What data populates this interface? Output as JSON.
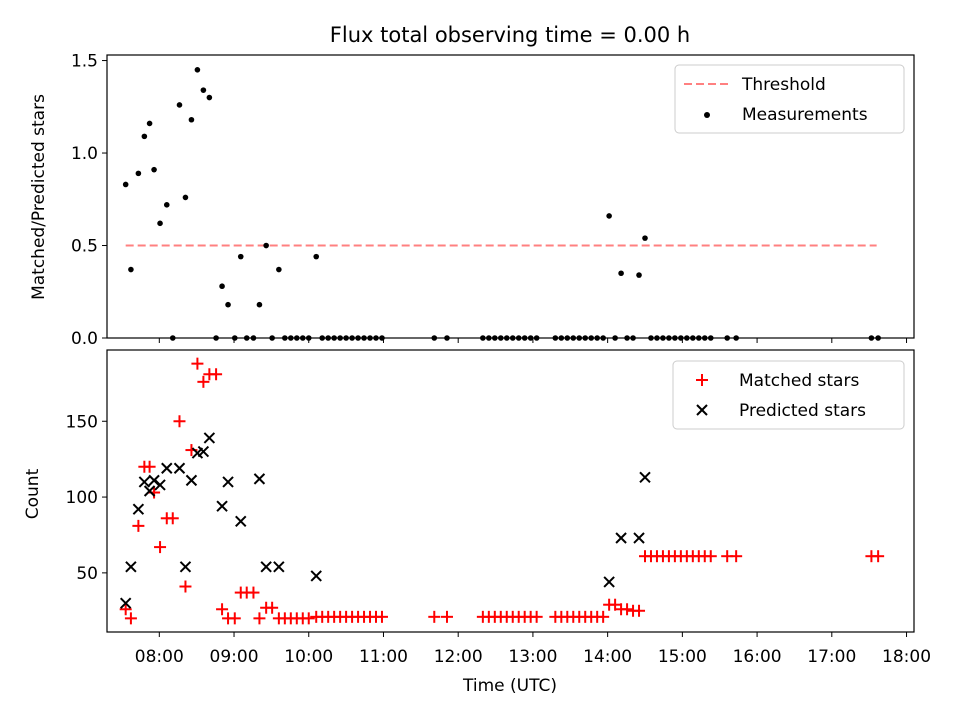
{
  "chart_data": [
    {
      "type": "scatter",
      "title": "Flux total observing time = 0.00 h",
      "xlabel": "",
      "ylabel": "Matched/Predicted stars",
      "xlim": [
        7.3,
        18.1
      ],
      "ylim": [
        0,
        1.53
      ],
      "yticks": [
        0.0,
        0.5,
        1.0,
        1.5
      ],
      "ytick_labels": [
        "0.0",
        "0.5",
        "1.0",
        "1.5"
      ],
      "legend_position": "top-right",
      "threshold": {
        "name": "Threshold",
        "value": 0.5,
        "x_start": 7.55,
        "x_end": 17.6,
        "color": "#ff8080"
      },
      "series": [
        {
          "name": "Measurements",
          "color": "#000000",
          "marker": "dot",
          "points": [
            [
              7.55,
              0.83
            ],
            [
              7.62,
              0.37
            ],
            [
              7.72,
              0.89
            ],
            [
              7.8,
              1.09
            ],
            [
              7.87,
              1.16
            ],
            [
              7.93,
              0.91
            ],
            [
              8.01,
              0.62
            ],
            [
              8.1,
              0.72
            ],
            [
              8.18,
              0.0
            ],
            [
              8.27,
              1.26
            ],
            [
              8.35,
              0.76
            ],
            [
              8.43,
              1.18
            ],
            [
              8.51,
              1.45
            ],
            [
              8.59,
              1.34
            ],
            [
              8.67,
              1.3
            ],
            [
              8.76,
              0.0
            ],
            [
              8.84,
              0.28
            ],
            [
              8.92,
              0.18
            ],
            [
              9.01,
              0.0
            ],
            [
              9.09,
              0.44
            ],
            [
              9.17,
              0.0
            ],
            [
              9.26,
              0.0
            ],
            [
              9.34,
              0.18
            ],
            [
              9.43,
              0.5
            ],
            [
              9.51,
              0.0
            ],
            [
              9.6,
              0.37
            ],
            [
              9.68,
              0.0
            ],
            [
              9.76,
              0.0
            ],
            [
              9.84,
              0.0
            ],
            [
              9.92,
              0.0
            ],
            [
              10.0,
              0.0
            ],
            [
              10.1,
              0.44
            ],
            [
              10.18,
              0.0
            ],
            [
              10.26,
              0.0
            ],
            [
              10.34,
              0.0
            ],
            [
              10.42,
              0.0
            ],
            [
              10.5,
              0.0
            ],
            [
              10.58,
              0.0
            ],
            [
              10.66,
              0.0
            ],
            [
              10.74,
              0.0
            ],
            [
              10.82,
              0.0
            ],
            [
              10.9,
              0.0
            ],
            [
              10.98,
              0.0
            ],
            [
              11.68,
              0.0
            ],
            [
              11.85,
              0.0
            ],
            [
              12.33,
              0.0
            ],
            [
              12.41,
              0.0
            ],
            [
              12.49,
              0.0
            ],
            [
              12.57,
              0.0
            ],
            [
              12.65,
              0.0
            ],
            [
              12.73,
              0.0
            ],
            [
              12.81,
              0.0
            ],
            [
              12.89,
              0.0
            ],
            [
              12.97,
              0.0
            ],
            [
              13.05,
              0.0
            ],
            [
              13.3,
              0.0
            ],
            [
              13.38,
              0.0
            ],
            [
              13.46,
              0.0
            ],
            [
              13.54,
              0.0
            ],
            [
              13.62,
              0.0
            ],
            [
              13.7,
              0.0
            ],
            [
              13.78,
              0.0
            ],
            [
              13.86,
              0.0
            ],
            [
              13.94,
              0.0
            ],
            [
              14.02,
              0.66
            ],
            [
              14.1,
              0.0
            ],
            [
              14.18,
              0.35
            ],
            [
              14.26,
              0.0
            ],
            [
              14.34,
              0.0
            ],
            [
              14.42,
              0.34
            ],
            [
              14.5,
              0.54
            ],
            [
              14.58,
              0.0
            ],
            [
              14.66,
              0.0
            ],
            [
              14.74,
              0.0
            ],
            [
              14.82,
              0.0
            ],
            [
              14.9,
              0.0
            ],
            [
              14.98,
              0.0
            ],
            [
              15.06,
              0.0
            ],
            [
              15.14,
              0.0
            ],
            [
              15.22,
              0.0
            ],
            [
              15.3,
              0.0
            ],
            [
              15.38,
              0.0
            ],
            [
              15.6,
              0.0
            ],
            [
              15.72,
              0.0
            ],
            [
              17.53,
              0.0
            ],
            [
              17.62,
              0.0
            ]
          ]
        }
      ]
    },
    {
      "type": "scatter",
      "title": "",
      "xlabel": "Time (UTC)",
      "ylabel": "Count",
      "xlim": [
        7.3,
        18.1
      ],
      "ylim": [
        11,
        197
      ],
      "xticks": [
        8,
        9,
        10,
        11,
        12,
        13,
        14,
        15,
        16,
        17,
        18
      ],
      "xtick_labels": [
        "08:00",
        "09:00",
        "10:00",
        "11:00",
        "12:00",
        "13:00",
        "14:00",
        "15:00",
        "16:00",
        "17:00",
        "18:00"
      ],
      "yticks": [
        50,
        100,
        150
      ],
      "ytick_labels": [
        "50",
        "100",
        "150"
      ],
      "legend_position": "top-right",
      "series": [
        {
          "name": "Matched stars",
          "color": "#ff0000",
          "marker": "plus",
          "points": [
            [
              7.55,
              26
            ],
            [
              7.62,
              20
            ],
            [
              7.72,
              81
            ],
            [
              7.8,
              120
            ],
            [
              7.87,
              120
            ],
            [
              7.93,
              103
            ],
            [
              8.01,
              67
            ],
            [
              8.1,
              86
            ],
            [
              8.18,
              86
            ],
            [
              8.27,
              150
            ],
            [
              8.35,
              41
            ],
            [
              8.43,
              131
            ],
            [
              8.51,
              188
            ],
            [
              8.59,
              176
            ],
            [
              8.67,
              181
            ],
            [
              8.76,
              181
            ],
            [
              8.84,
              26
            ],
            [
              8.92,
              20
            ],
            [
              9.01,
              20
            ],
            [
              9.09,
              37
            ],
            [
              9.17,
              37
            ],
            [
              9.26,
              37
            ],
            [
              9.34,
              20
            ],
            [
              9.43,
              27
            ],
            [
              9.51,
              27
            ],
            [
              9.6,
              20
            ],
            [
              9.68,
              20
            ],
            [
              9.76,
              20
            ],
            [
              9.84,
              20
            ],
            [
              9.92,
              20
            ],
            [
              10.0,
              20
            ],
            [
              10.1,
              21
            ],
            [
              10.18,
              21
            ],
            [
              10.26,
              21
            ],
            [
              10.34,
              21
            ],
            [
              10.42,
              21
            ],
            [
              10.5,
              21
            ],
            [
              10.58,
              21
            ],
            [
              10.66,
              21
            ],
            [
              10.74,
              21
            ],
            [
              10.82,
              21
            ],
            [
              10.9,
              21
            ],
            [
              10.98,
              21
            ],
            [
              11.68,
              21
            ],
            [
              11.85,
              21
            ],
            [
              12.33,
              21
            ],
            [
              12.41,
              21
            ],
            [
              12.49,
              21
            ],
            [
              12.57,
              21
            ],
            [
              12.65,
              21
            ],
            [
              12.73,
              21
            ],
            [
              12.81,
              21
            ],
            [
              12.89,
              21
            ],
            [
              12.97,
              21
            ],
            [
              13.05,
              21
            ],
            [
              13.3,
              21
            ],
            [
              13.38,
              21
            ],
            [
              13.46,
              21
            ],
            [
              13.54,
              21
            ],
            [
              13.62,
              21
            ],
            [
              13.7,
              21
            ],
            [
              13.78,
              21
            ],
            [
              13.86,
              21
            ],
            [
              13.94,
              21
            ],
            [
              14.02,
              29
            ],
            [
              14.1,
              29
            ],
            [
              14.18,
              26
            ],
            [
              14.26,
              26
            ],
            [
              14.34,
              25
            ],
            [
              14.42,
              25
            ],
            [
              14.5,
              61
            ],
            [
              14.58,
              61
            ],
            [
              14.66,
              61
            ],
            [
              14.74,
              61
            ],
            [
              14.82,
              61
            ],
            [
              14.9,
              61
            ],
            [
              14.98,
              61
            ],
            [
              15.06,
              61
            ],
            [
              15.14,
              61
            ],
            [
              15.22,
              61
            ],
            [
              15.3,
              61
            ],
            [
              15.38,
              61
            ],
            [
              15.6,
              61
            ],
            [
              15.72,
              61
            ],
            [
              17.53,
              61
            ],
            [
              17.62,
              61
            ]
          ]
        },
        {
          "name": "Predicted stars",
          "color": "#000000",
          "marker": "x",
          "points": [
            [
              7.55,
              30
            ],
            [
              7.62,
              54
            ],
            [
              7.72,
              92
            ],
            [
              7.8,
              110
            ],
            [
              7.87,
              104
            ],
            [
              7.93,
              111
            ],
            [
              8.01,
              108
            ],
            [
              8.1,
              119
            ],
            [
              8.27,
              119
            ],
            [
              8.35,
              54
            ],
            [
              8.43,
              111
            ],
            [
              8.51,
              129
            ],
            [
              8.59,
              130
            ],
            [
              8.67,
              139
            ],
            [
              8.84,
              94
            ],
            [
              8.92,
              110
            ],
            [
              9.09,
              84
            ],
            [
              9.34,
              112
            ],
            [
              9.43,
              54
            ],
            [
              9.6,
              54
            ],
            [
              10.1,
              48
            ],
            [
              14.02,
              44
            ],
            [
              14.18,
              73
            ],
            [
              14.42,
              73
            ],
            [
              14.5,
              113
            ]
          ]
        }
      ]
    }
  ]
}
